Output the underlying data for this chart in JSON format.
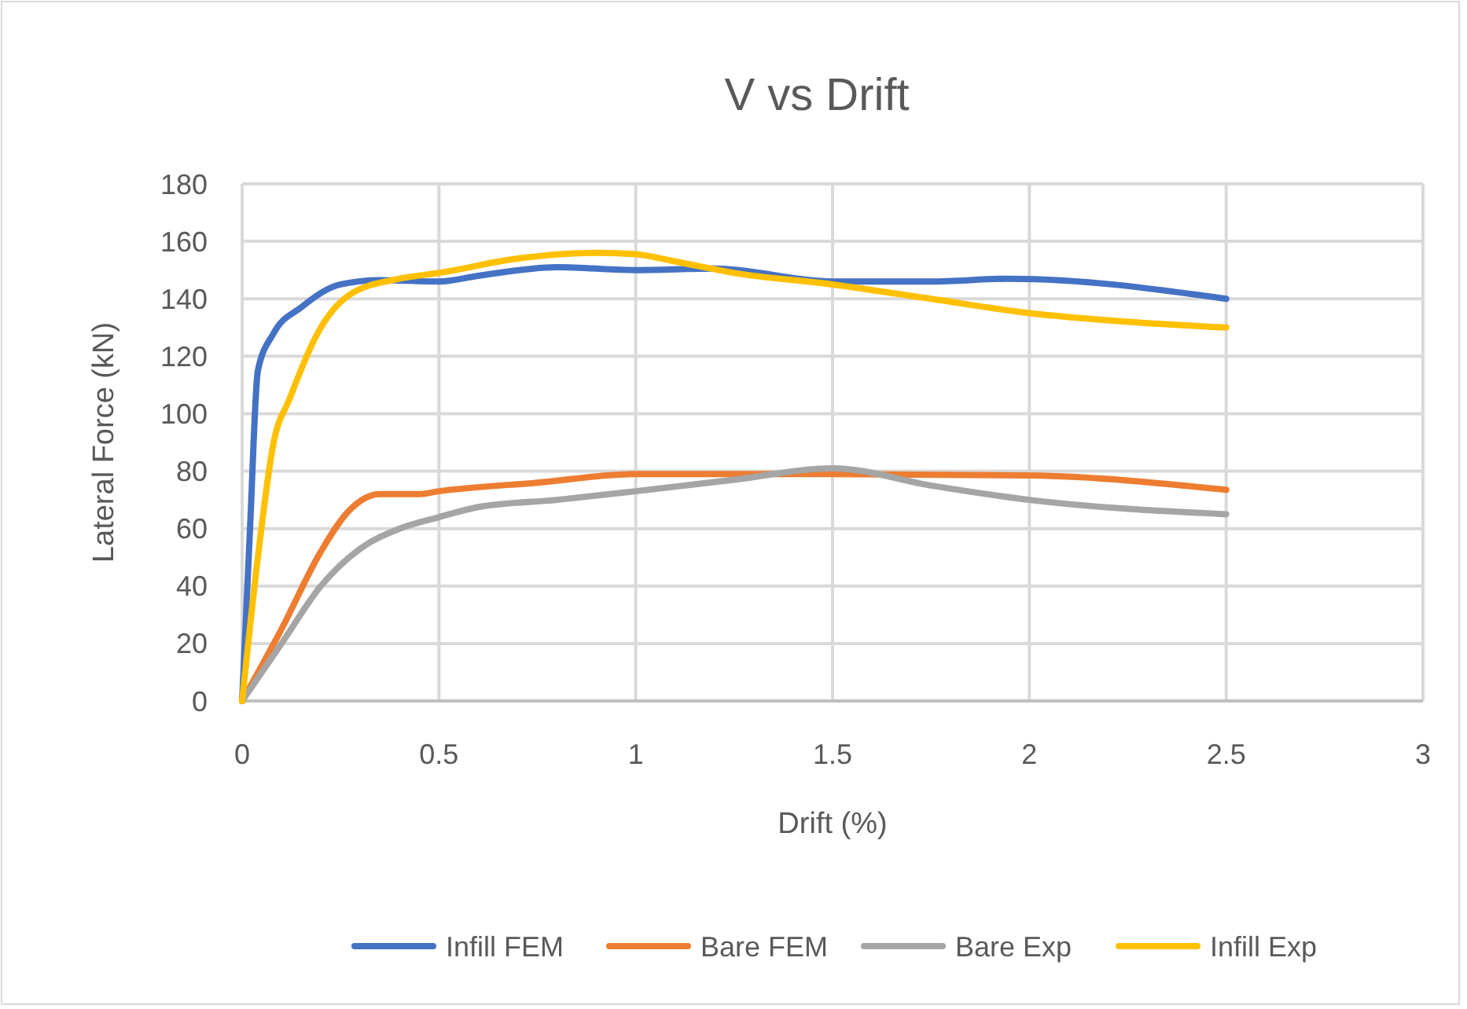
{
  "chart_data": {
    "type": "line",
    "title": "V vs Drift",
    "xlabel": "Drift (%)",
    "ylabel": "Lateral Force (kN)",
    "xlim": [
      0,
      3
    ],
    "xticks": [
      0,
      0.5,
      1,
      1.5,
      2,
      2.5,
      3
    ],
    "ylim": [
      0,
      180
    ],
    "yticks": [
      0,
      20,
      40,
      60,
      80,
      100,
      120,
      140,
      160,
      180
    ],
    "grid": true,
    "legend": "bottom",
    "line_style": "solid",
    "marker": "none",
    "series": [
      {
        "name": "Infill FEM",
        "color": "#4472c4",
        "x": [
          0,
          0.02,
          0.04,
          0.08,
          0.15,
          0.25,
          0.35,
          0.5,
          0.6,
          0.8,
          1,
          1.2,
          1.5,
          1.75,
          1.95,
          2.5
        ],
        "values": [
          0,
          60,
          115,
          128,
          137,
          145,
          146.5,
          146,
          148,
          151,
          150,
          150.5,
          146,
          146,
          147,
          140
        ]
      },
      {
        "name": "Bare FEM",
        "color": "#ed7d31",
        "x": [
          0,
          0.1,
          0.2,
          0.27,
          0.35,
          0.45,
          0.5,
          0.75,
          1,
          1.5,
          2,
          2.5
        ],
        "values": [
          0,
          25,
          52,
          66,
          72,
          72,
          73,
          76,
          79,
          79,
          78.5,
          73.5
        ]
      },
      {
        "name": "Bare Exp",
        "color": "#a5a5a5",
        "x": [
          0,
          0.1,
          0.2,
          0.3,
          0.4,
          0.5,
          0.6,
          0.8,
          1,
          1.25,
          1.5,
          1.75,
          2,
          2.5
        ],
        "values": [
          0,
          20,
          40,
          53,
          60,
          64,
          67.5,
          70,
          73,
          77,
          81,
          75,
          70,
          65
        ]
      },
      {
        "name": "Infill Exp",
        "color": "#ffc000",
        "x": [
          0,
          0.04,
          0.08,
          0.12,
          0.2,
          0.28,
          0.4,
          0.5,
          0.7,
          0.9,
          1,
          1.1,
          1.25,
          1.5,
          1.75,
          2,
          2.25,
          2.5
        ],
        "values": [
          0,
          50,
          90,
          105,
          130,
          142,
          147,
          149,
          154,
          156,
          155.5,
          153,
          149,
          145,
          140,
          135,
          132,
          130
        ]
      }
    ]
  }
}
